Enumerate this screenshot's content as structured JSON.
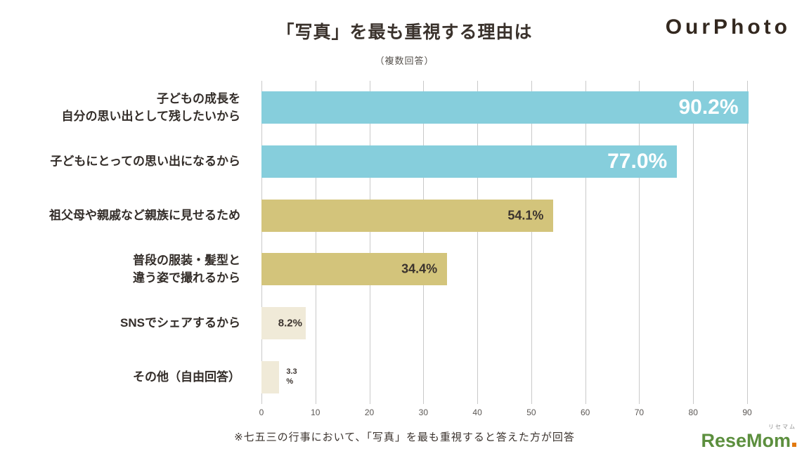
{
  "header": {
    "title": "「写真」を最も重視する理由は",
    "subtitle": "（複数回答）",
    "logo_text": "OurPhoto"
  },
  "footer": {
    "note": "※七五三の行事において、「写真」を最も重視すると答えた方が回答",
    "watermark": "ReseMom",
    "watermark_furigana": "リセマム"
  },
  "chart_data": {
    "type": "bar",
    "orientation": "horizontal",
    "title": "「写真」を最も重視する理由は",
    "subtitle": "（複数回答）",
    "categories": [
      "子どもの成長を\n自分の思い出として残したいから",
      "子どもにとっての思い出になるから",
      "祖父母や親戚など親族に見せるため",
      "普段の服装・髪型と\n違う姿で撮れるから",
      "SNSでシェアするから",
      "その他（自由回答）"
    ],
    "values": [
      90.2,
      77.0,
      54.1,
      34.4,
      8.2,
      3.3
    ],
    "value_labels": [
      "90.2%",
      "77.0%",
      "54.1%",
      "34.4%",
      "8.2%",
      "3.3\n%"
    ],
    "bar_colors": [
      "#86CEDC",
      "#86CEDC",
      "#D3C47B",
      "#D3C47B",
      "#F0EAD8",
      "#F0EAD8"
    ],
    "label_styles": [
      "inside-large-white",
      "inside-large-white",
      "inside-dark",
      "inside-dark",
      "inside-dark-small",
      "outside-dark-tiny"
    ],
    "xlim": [
      0,
      90
    ],
    "xticks": [
      0,
      10,
      20,
      30,
      40,
      50,
      60,
      70,
      80,
      90
    ],
    "grid": true,
    "legend": false,
    "gridline_color": "#c9c9c9"
  }
}
